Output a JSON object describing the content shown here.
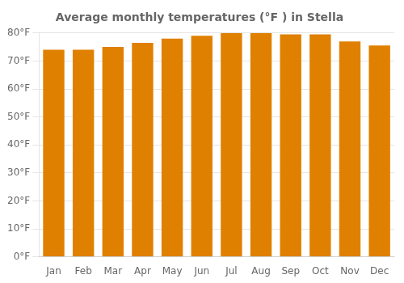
{
  "chart_data": {
    "type": "bar",
    "title": "Average monthly temperatures (°F ) in Stella",
    "categories": [
      "Jan",
      "Feb",
      "Mar",
      "Apr",
      "May",
      "Jun",
      "Jul",
      "Aug",
      "Sep",
      "Oct",
      "Nov",
      "Dec"
    ],
    "values": [
      74,
      74,
      75,
      76.5,
      78,
      79,
      80,
      80,
      79.5,
      79.5,
      77,
      75.5
    ],
    "color": "#E08000",
    "ylim": [
      0,
      80
    ],
    "yticks": [
      {
        "value": 0,
        "label": "0°F"
      },
      {
        "value": 10,
        "label": "10°F"
      },
      {
        "value": 20,
        "label": "20°F"
      },
      {
        "value": 30,
        "label": "30°F"
      },
      {
        "value": 40,
        "label": "40°F"
      },
      {
        "value": 50,
        "label": "50°F"
      },
      {
        "value": 60,
        "label": "60°F"
      },
      {
        "value": 70,
        "label": "70°F"
      },
      {
        "value": 80,
        "label": "80°F"
      }
    ],
    "grid": true
  }
}
